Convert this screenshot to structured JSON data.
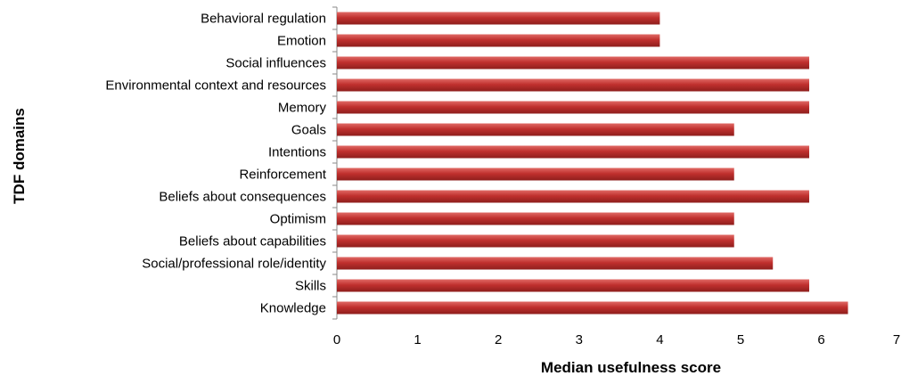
{
  "chart_data": {
    "type": "bar",
    "orientation": "horizontal",
    "categories": [
      "Behavioral regulation",
      "Emotion",
      "Social  influences",
      "Environmental context and resources",
      "Memory",
      "Goals",
      "Intentions",
      "Reinforcement",
      "Beliefs about consequences",
      "Optimism",
      "Beliefs about capabilities",
      "Social/professional role/identity",
      "Skills",
      "Knowledge"
    ],
    "values": [
      4,
      4,
      5.85,
      5.85,
      5.85,
      4.92,
      5.85,
      4.92,
      5.85,
      4.92,
      4.92,
      5.4,
      5.85,
      6.33
    ],
    "xlabel": "Median usefulness score",
    "ylabel": "TDF domains",
    "xlim": [
      0,
      7
    ],
    "xticks": [
      "0",
      "1",
      "2",
      "3",
      "4",
      "5",
      "6",
      "7"
    ],
    "grid": false,
    "legend": "none",
    "bar_color": "#c0302e"
  }
}
